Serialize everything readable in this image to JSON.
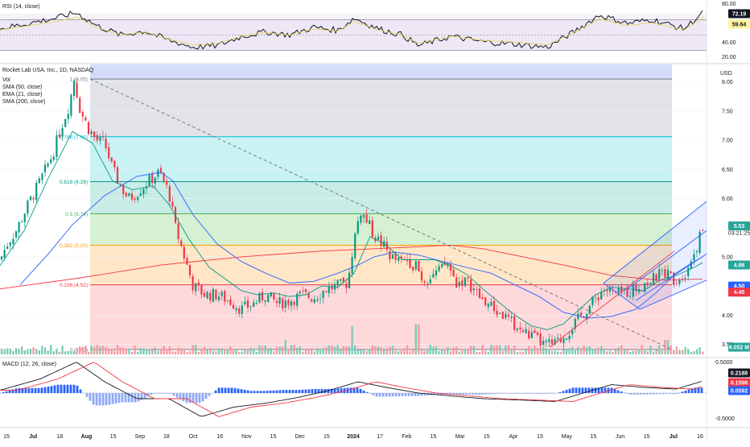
{
  "chart_data": {
    "type": "candlestick",
    "title": "Rocket Lab USA, Inc., 1D, NASDAQ",
    "currency": "USD",
    "legend_items": [
      "Vol",
      "SMA (50, close)",
      "EMA (21, close)",
      "SMA (200, close)"
    ],
    "price_axis": {
      "range": [
        3.3,
        8.3
      ],
      "ticks": [
        {
          "value": 8.0,
          "label": "8.00"
        },
        {
          "value": 7.5,
          "label": "7.50"
        },
        {
          "value": 7.0,
          "label": "7.00"
        },
        {
          "value": 6.5,
          "label": "6.50"
        },
        {
          "value": 6.0,
          "label": "6.00"
        },
        {
          "value": 5.0,
          "label": "5.00"
        },
        {
          "value": 4.0,
          "label": "4.00"
        },
        {
          "value": 3.5,
          "label": "3.50"
        }
      ]
    },
    "price_badges": [
      {
        "value": 5.53,
        "label": "5.53",
        "sub": "03:21:25",
        "color": "#26a69a"
      },
      {
        "value": 4.86,
        "label": "4.86",
        "color": "#26a69a"
      },
      {
        "value": 4.5,
        "label": "4.50",
        "color": "#2962ff"
      },
      {
        "value": 4.45,
        "label": "4.45",
        "color": "#f23645"
      }
    ],
    "volume_badge": {
      "label": "6.052 M",
      "color": "#26a69a"
    },
    "fib_levels": [
      {
        "ratio": 1,
        "price": 8.05,
        "label": "1 (8.05)",
        "color": "#787b86"
      },
      {
        "ratio": 0.786,
        "price": 7.06,
        "label": "0.786 (7.06)",
        "color": "#00bcd4"
      },
      {
        "ratio": 0.618,
        "price": 6.29,
        "label": "0.618 (6.29)",
        "color": "#089981"
      },
      {
        "ratio": 0.5,
        "price": 5.74,
        "label": "0.5 (5.74)",
        "color": "#4caf50"
      },
      {
        "ratio": 0.382,
        "price": 5.2,
        "label": "0.382 (5.20)",
        "color": "#ff9800"
      },
      {
        "ratio": 0.236,
        "price": 4.52,
        "label": "0.236 (4.52)",
        "color": "#f23645"
      },
      {
        "ratio": 0,
        "price": 3.41,
        "label": "0 (3.41)",
        "color": "#787b86"
      }
    ],
    "x_axis": {
      "ticks": [
        "15",
        "Jul",
        "18",
        "Aug",
        "15",
        "Sep",
        "18",
        "Oct",
        "16",
        "Nov",
        "15",
        "Dec",
        "15",
        "2024",
        "17",
        "Feb",
        "15",
        "Mar",
        "15",
        "Apr",
        "15",
        "May",
        "15",
        "Jun",
        "15",
        "Jul",
        "16"
      ]
    },
    "rsi": {
      "title": "RSI (14, close)",
      "axis_labels": [
        "80.00",
        "40.00",
        "20.00"
      ],
      "badges": [
        {
          "label": "72.19",
          "color": "#131722",
          "text_color": "#ffffff"
        },
        {
          "label": "59.64",
          "color": "#fff59d",
          "text_color": "#131722"
        }
      ]
    },
    "macd": {
      "title": "MACD (12, 26, close)",
      "axis_labels": [
        "0.5000",
        "-0.5000"
      ],
      "badges": [
        {
          "label": "0.2188",
          "color": "#131722",
          "text_color": "#ffffff"
        },
        {
          "label": "0.1596",
          "color": "#f23645",
          "text_color": "#ffffff"
        },
        {
          "label": "0.0592",
          "color": "#2962ff",
          "text_color": "#ffffff"
        }
      ]
    },
    "series": [
      {
        "name": "SMA (50, close)",
        "color": "#2962ff",
        "points": [
          [
            25,
            4.52
          ],
          [
            60,
            5.05
          ],
          [
            90,
            5.55
          ],
          [
            130,
            6.05
          ],
          [
            170,
            6.38
          ],
          [
            200,
            6.45
          ],
          [
            215,
            6.3
          ],
          [
            240,
            5.72
          ],
          [
            270,
            5.22
          ],
          [
            300,
            4.92
          ],
          [
            330,
            4.72
          ],
          [
            360,
            4.55
          ],
          [
            390,
            4.58
          ],
          [
            420,
            4.72
          ],
          [
            445,
            4.86
          ],
          [
            465,
            5.0
          ],
          [
            490,
            5.08
          ],
          [
            520,
            5.03
          ],
          [
            550,
            4.92
          ],
          [
            580,
            4.82
          ],
          [
            610,
            4.72
          ],
          [
            640,
            4.52
          ],
          [
            670,
            4.32
          ],
          [
            700,
            4.05
          ],
          [
            730,
            3.95
          ],
          [
            760,
            3.98
          ],
          [
            790,
            4.1
          ],
          [
            815,
            4.38
          ],
          [
            840,
            4.72
          ],
          [
            860,
            4.9
          ],
          [
            873,
            5.0
          ]
        ]
      },
      {
        "name": "EMA (21, close)",
        "color": "#089981",
        "points": [
          [
            0,
            4.85
          ],
          [
            30,
            5.45
          ],
          [
            60,
            6.35
          ],
          [
            90,
            7.15
          ],
          [
            115,
            6.95
          ],
          [
            140,
            6.3
          ],
          [
            165,
            6.15
          ],
          [
            190,
            6.22
          ],
          [
            210,
            5.9
          ],
          [
            235,
            5.3
          ],
          [
            260,
            4.82
          ],
          [
            280,
            4.62
          ],
          [
            300,
            4.42
          ],
          [
            320,
            4.35
          ],
          [
            340,
            4.38
          ],
          [
            360,
            4.32
          ],
          [
            380,
            4.35
          ],
          [
            400,
            4.5
          ],
          [
            420,
            4.48
          ],
          [
            440,
            4.72
          ],
          [
            460,
            5.35
          ],
          [
            480,
            5.2
          ],
          [
            500,
            4.95
          ],
          [
            520,
            4.95
          ],
          [
            540,
            4.95
          ],
          [
            560,
            4.85
          ],
          [
            580,
            4.7
          ],
          [
            600,
            4.45
          ],
          [
            620,
            4.22
          ],
          [
            640,
            4.0
          ],
          [
            660,
            3.82
          ],
          [
            680,
            3.75
          ],
          [
            700,
            3.85
          ],
          [
            720,
            4.1
          ],
          [
            740,
            4.35
          ],
          [
            760,
            4.48
          ],
          [
            780,
            4.45
          ],
          [
            800,
            4.42
          ],
          [
            820,
            4.6
          ],
          [
            840,
            4.68
          ],
          [
            860,
            4.8
          ],
          [
            873,
            4.9
          ]
        ]
      },
      {
        "name": "SMA (200, close)",
        "color": "#f23645",
        "points": [
          [
            0,
            4.45
          ],
          [
            100,
            4.64
          ],
          [
            200,
            4.86
          ],
          [
            300,
            5.0
          ],
          [
            400,
            5.1
          ],
          [
            500,
            5.16
          ],
          [
            560,
            5.2
          ],
          [
            600,
            5.14
          ],
          [
            650,
            5.0
          ],
          [
            700,
            4.86
          ],
          [
            760,
            4.68
          ],
          [
            820,
            4.6
          ],
          [
            873,
            4.62
          ]
        ]
      }
    ]
  }
}
